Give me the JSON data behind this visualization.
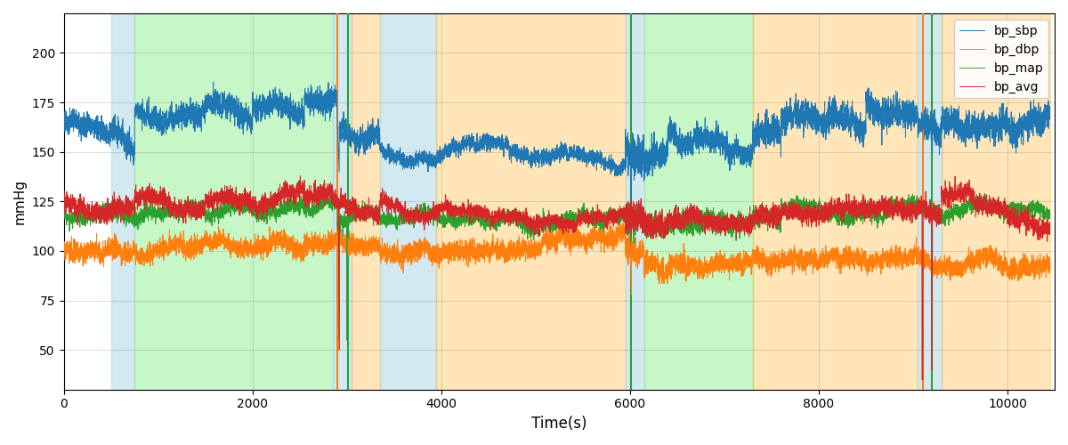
{
  "xlabel": "Time(s)",
  "ylabel": "mmHg",
  "xlim": [
    0,
    10500
  ],
  "ylim": [
    30,
    220
  ],
  "yticks": [
    50,
    75,
    100,
    125,
    150,
    175,
    200
  ],
  "figsize": [
    12,
    5
  ],
  "dpi": 100,
  "line_colors": {
    "bp_sbp": "#1f77b4",
    "bp_dbp": "#ff7f0e",
    "bp_map": "#2ca02c",
    "bp_avg": "#d62728"
  },
  "bands": [
    [
      500,
      750,
      "#add8e6",
      0.55
    ],
    [
      750,
      2850,
      "#90ee90",
      0.5
    ],
    [
      2850,
      3050,
      "#add8e6",
      0.55
    ],
    [
      3050,
      3350,
      "#ffa500",
      0.28
    ],
    [
      3350,
      3950,
      "#add8e6",
      0.55
    ],
    [
      3950,
      5950,
      "#ffa500",
      0.28
    ],
    [
      5950,
      6150,
      "#add8e6",
      0.55
    ],
    [
      6150,
      7300,
      "#90ee90",
      0.5
    ],
    [
      7300,
      9050,
      "#ffa500",
      0.28
    ],
    [
      9050,
      9300,
      "#add8e6",
      0.55
    ],
    [
      9300,
      10450,
      "#ffa500",
      0.28
    ]
  ],
  "vlines": [
    [
      2900,
      "#ff7f0e",
      1.5
    ],
    [
      3010,
      "#2ca02c",
      1.5
    ],
    [
      6010,
      "#2ca02c",
      1.5
    ],
    [
      9100,
      "#ff7f0e",
      1.5
    ],
    [
      9200,
      "#2ca02c",
      1.5
    ]
  ],
  "seed": 7,
  "segments": [
    {
      "t_start": 0,
      "t_end": 500,
      "sbp": 163,
      "sbp_noise": 5,
      "dbp": 100,
      "dbp_noise": 4,
      "map": 118,
      "map_noise": 3,
      "avg": 121,
      "avg_noise": 4
    },
    {
      "t_start": 500,
      "t_end": 750,
      "sbp": 157,
      "sbp_noise": 5,
      "dbp": 100,
      "dbp_noise": 4,
      "map": 118,
      "map_noise": 3,
      "avg": 122,
      "avg_noise": 4
    },
    {
      "t_start": 750,
      "t_end": 1500,
      "sbp": 168,
      "sbp_noise": 5,
      "dbp": 101,
      "dbp_noise": 4,
      "map": 120,
      "map_noise": 3,
      "avg": 124,
      "avg_noise": 4
    },
    {
      "t_start": 1500,
      "t_end": 2000,
      "sbp": 172,
      "sbp_noise": 5,
      "dbp": 103,
      "dbp_noise": 4,
      "map": 121,
      "map_noise": 3,
      "avg": 126,
      "avg_noise": 4
    },
    {
      "t_start": 2000,
      "t_end": 2550,
      "sbp": 172,
      "sbp_noise": 5,
      "dbp": 103,
      "dbp_noise": 4,
      "map": 121,
      "map_noise": 3,
      "avg": 127,
      "avg_noise": 4
    },
    {
      "t_start": 2550,
      "t_end": 2900,
      "sbp": 176,
      "sbp_noise": 5,
      "dbp": 104,
      "dbp_noise": 4,
      "map": 123,
      "map_noise": 3,
      "avg": 128,
      "avg_noise": 4
    },
    {
      "t_start": 2900,
      "t_end": 3350,
      "sbp": 158,
      "sbp_noise": 5,
      "dbp": 103,
      "dbp_noise": 4,
      "map": 118,
      "map_noise": 3,
      "avg": 121,
      "avg_noise": 4
    },
    {
      "t_start": 3350,
      "t_end": 5950,
      "sbp": 149,
      "sbp_noise": 3,
      "dbp": 102,
      "dbp_noise": 4,
      "map": 116,
      "map_noise": 3,
      "avg": 118,
      "avg_noise": 3
    },
    {
      "t_start": 5950,
      "t_end": 6150,
      "sbp": 148,
      "sbp_noise": 8,
      "dbp": 100,
      "dbp_noise": 6,
      "map": 115,
      "map_noise": 5,
      "avg": 117,
      "avg_noise": 6
    },
    {
      "t_start": 6150,
      "t_end": 6400,
      "sbp": 148,
      "sbp_noise": 6,
      "dbp": 92,
      "dbp_noise": 5,
      "map": 113,
      "map_noise": 4,
      "avg": 113,
      "avg_noise": 5
    },
    {
      "t_start": 6400,
      "t_end": 7300,
      "sbp": 154,
      "sbp_noise": 5,
      "dbp": 93,
      "dbp_noise": 4,
      "map": 114,
      "map_noise": 4,
      "avg": 115,
      "avg_noise": 4
    },
    {
      "t_start": 7300,
      "t_end": 7600,
      "sbp": 160,
      "sbp_noise": 6,
      "dbp": 95,
      "dbp_noise": 4,
      "map": 117,
      "map_noise": 4,
      "avg": 118,
      "avg_noise": 4
    },
    {
      "t_start": 7600,
      "t_end": 8500,
      "sbp": 167,
      "sbp_noise": 6,
      "dbp": 96,
      "dbp_noise": 4,
      "map": 120,
      "map_noise": 3,
      "avg": 120,
      "avg_noise": 4
    },
    {
      "t_start": 8500,
      "t_end": 9050,
      "sbp": 170,
      "sbp_noise": 6,
      "dbp": 96,
      "dbp_noise": 4,
      "map": 121,
      "map_noise": 3,
      "avg": 121,
      "avg_noise": 4
    },
    {
      "t_start": 9050,
      "t_end": 9300,
      "sbp": 162,
      "sbp_noise": 6,
      "dbp": 94,
      "dbp_noise": 4,
      "map": 120,
      "map_noise": 3,
      "avg": 120,
      "avg_noise": 4
    },
    {
      "t_start": 9300,
      "t_end": 10450,
      "sbp": 164,
      "sbp_noise": 6,
      "dbp": 93,
      "dbp_noise": 4,
      "map": 121,
      "map_noise": 3,
      "avg": 121,
      "avg_noise": 4
    }
  ]
}
